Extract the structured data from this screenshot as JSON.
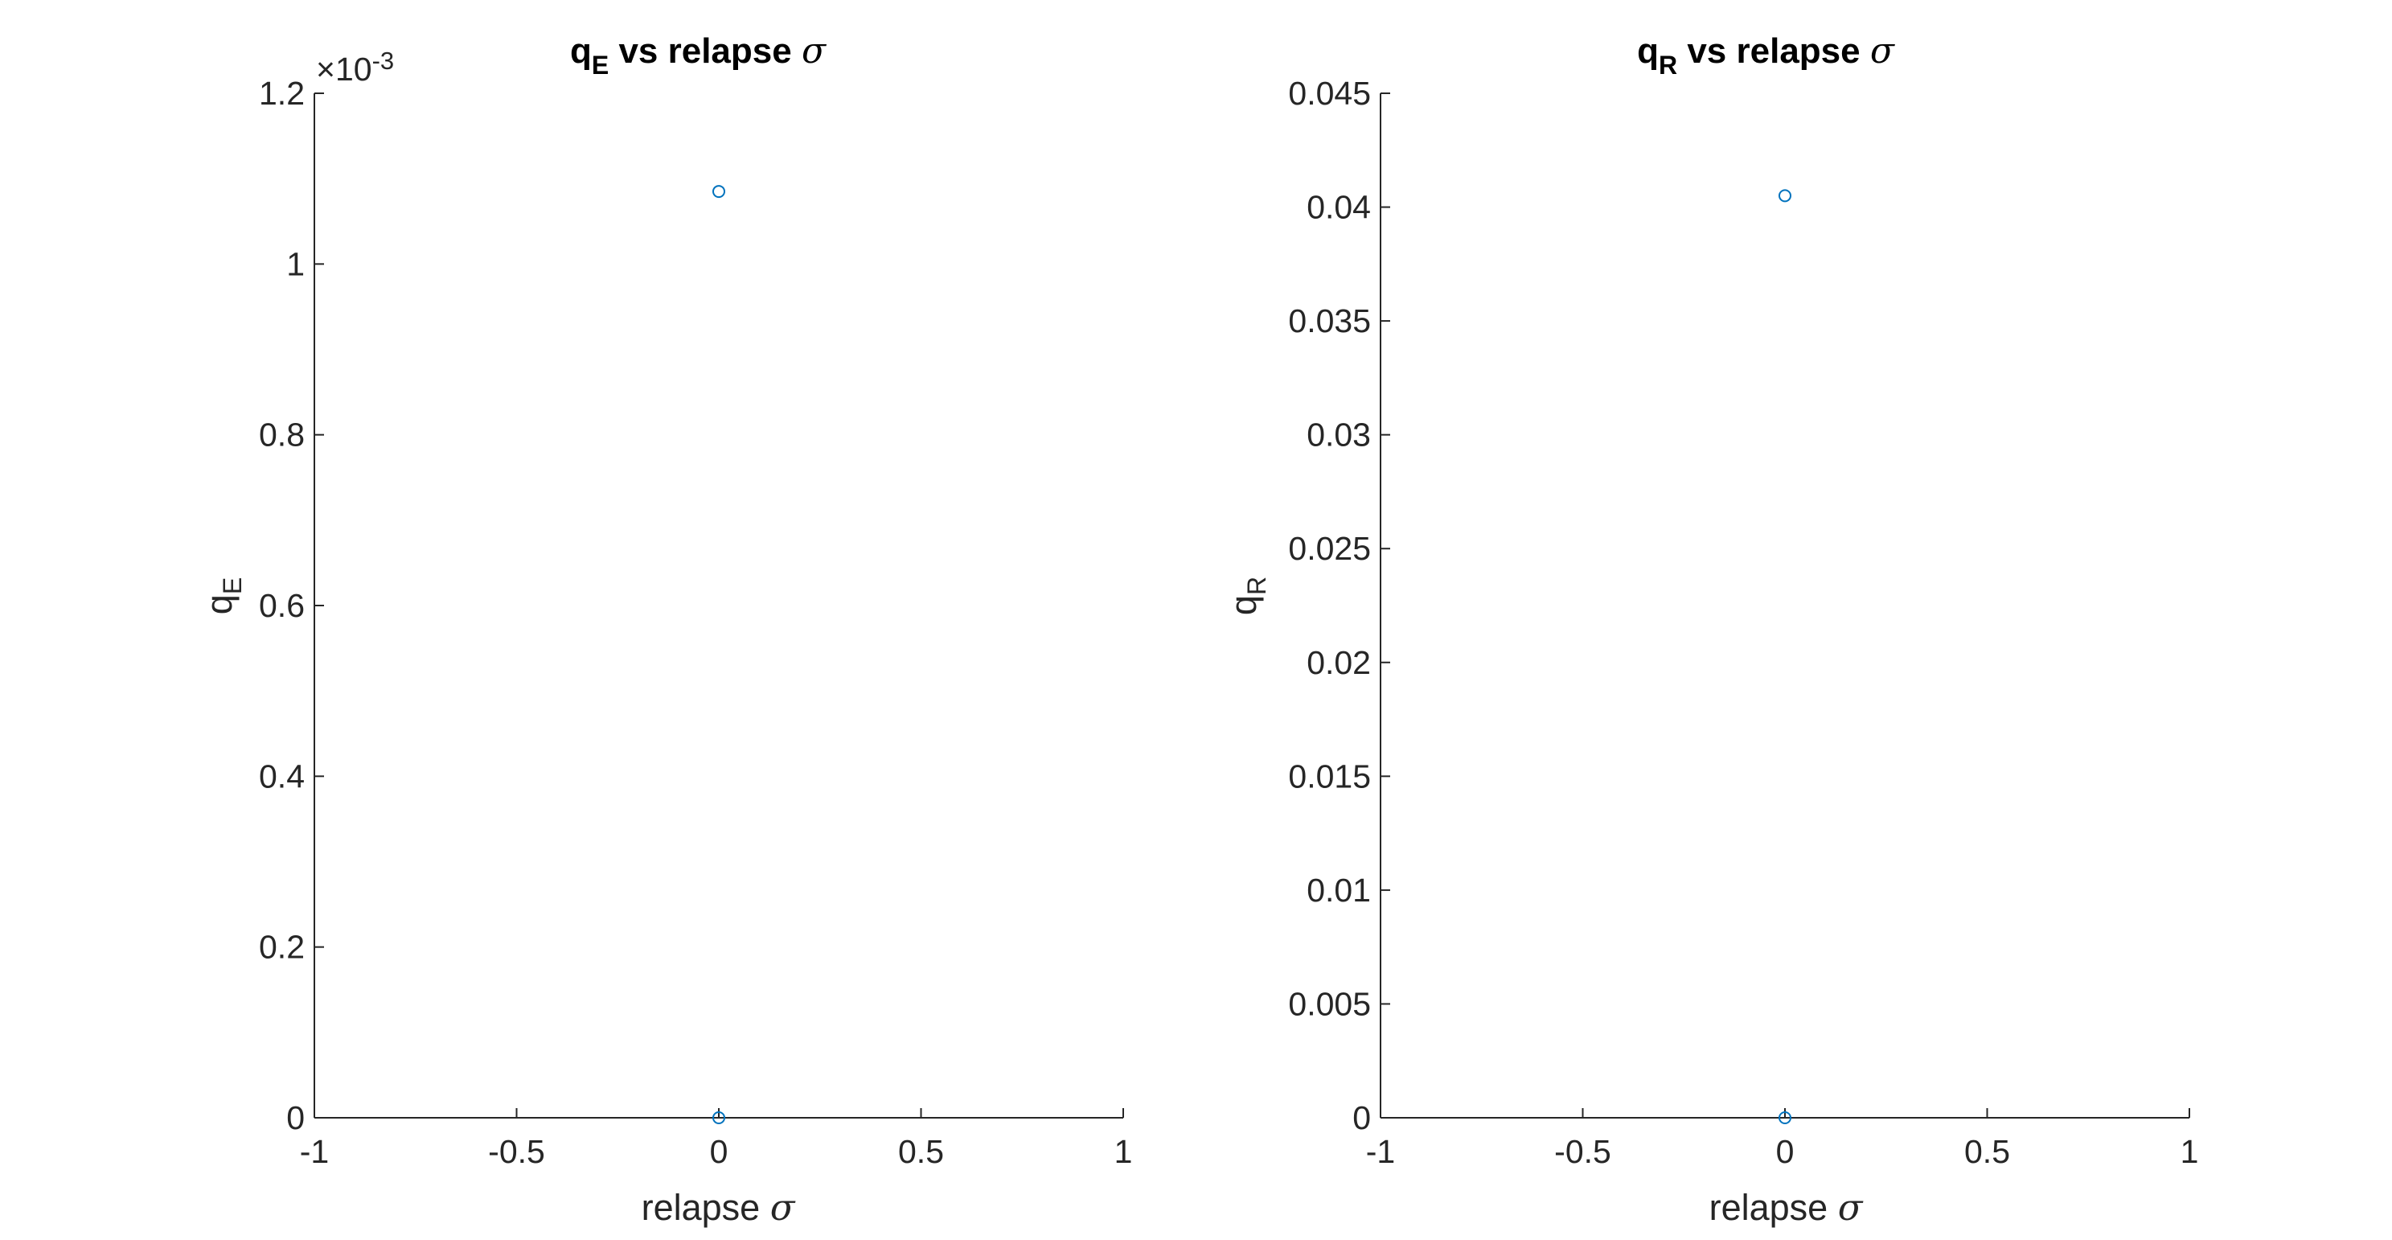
{
  "colors": {
    "marker": "#0072BD",
    "axis": "#262626",
    "background": "#ffffff"
  },
  "chart_data": [
    {
      "type": "scatter",
      "title_main": "q",
      "title_sub": "E",
      "title_rest": " vs relapse ",
      "title_sigma": "σ",
      "xlabel_text": "relapse ",
      "xlabel_sigma": "σ",
      "ylabel_main": "q",
      "ylabel_sub": "E",
      "exponent_prefix": "×10",
      "exponent_power": "-3",
      "xlim": [
        -1,
        1
      ],
      "ylim": [
        0,
        0.0012
      ],
      "xticks": [
        -1,
        -0.5,
        0,
        0.5,
        1
      ],
      "xtick_labels": [
        "-1",
        "-0.5",
        "0",
        "0.5",
        "1"
      ],
      "yticks": [
        0,
        0.0002,
        0.0004,
        0.0006,
        0.0008,
        0.001,
        0.0012
      ],
      "ytick_labels": [
        "0",
        "0.2",
        "0.4",
        "0.6",
        "0.8",
        "1",
        "1.2"
      ],
      "grid": false,
      "marker": "circle-open",
      "points": [
        {
          "x": 0,
          "y": 0.001085
        },
        {
          "x": 0,
          "y": 0
        }
      ]
    },
    {
      "type": "scatter",
      "title_main": "q",
      "title_sub": "R",
      "title_rest": " vs relapse ",
      "title_sigma": "σ",
      "xlabel_text": "relapse ",
      "xlabel_sigma": "σ",
      "ylabel_main": "q",
      "ylabel_sub": "R",
      "exponent_prefix": "",
      "exponent_power": "",
      "xlim": [
        -1,
        1
      ],
      "ylim": [
        0,
        0.045
      ],
      "xticks": [
        -1,
        -0.5,
        0,
        0.5,
        1
      ],
      "xtick_labels": [
        "-1",
        "-0.5",
        "0",
        "0.5",
        "1"
      ],
      "yticks": [
        0,
        0.005,
        0.01,
        0.015,
        0.02,
        0.025,
        0.03,
        0.035,
        0.04,
        0.045
      ],
      "ytick_labels": [
        "0",
        "0.005",
        "0.01",
        "0.015",
        "0.02",
        "0.025",
        "0.03",
        "0.035",
        "0.04",
        "0.045"
      ],
      "grid": false,
      "marker": "circle-open",
      "points": [
        {
          "x": 0,
          "y": 0.0405
        },
        {
          "x": 0,
          "y": 0
        }
      ]
    }
  ]
}
